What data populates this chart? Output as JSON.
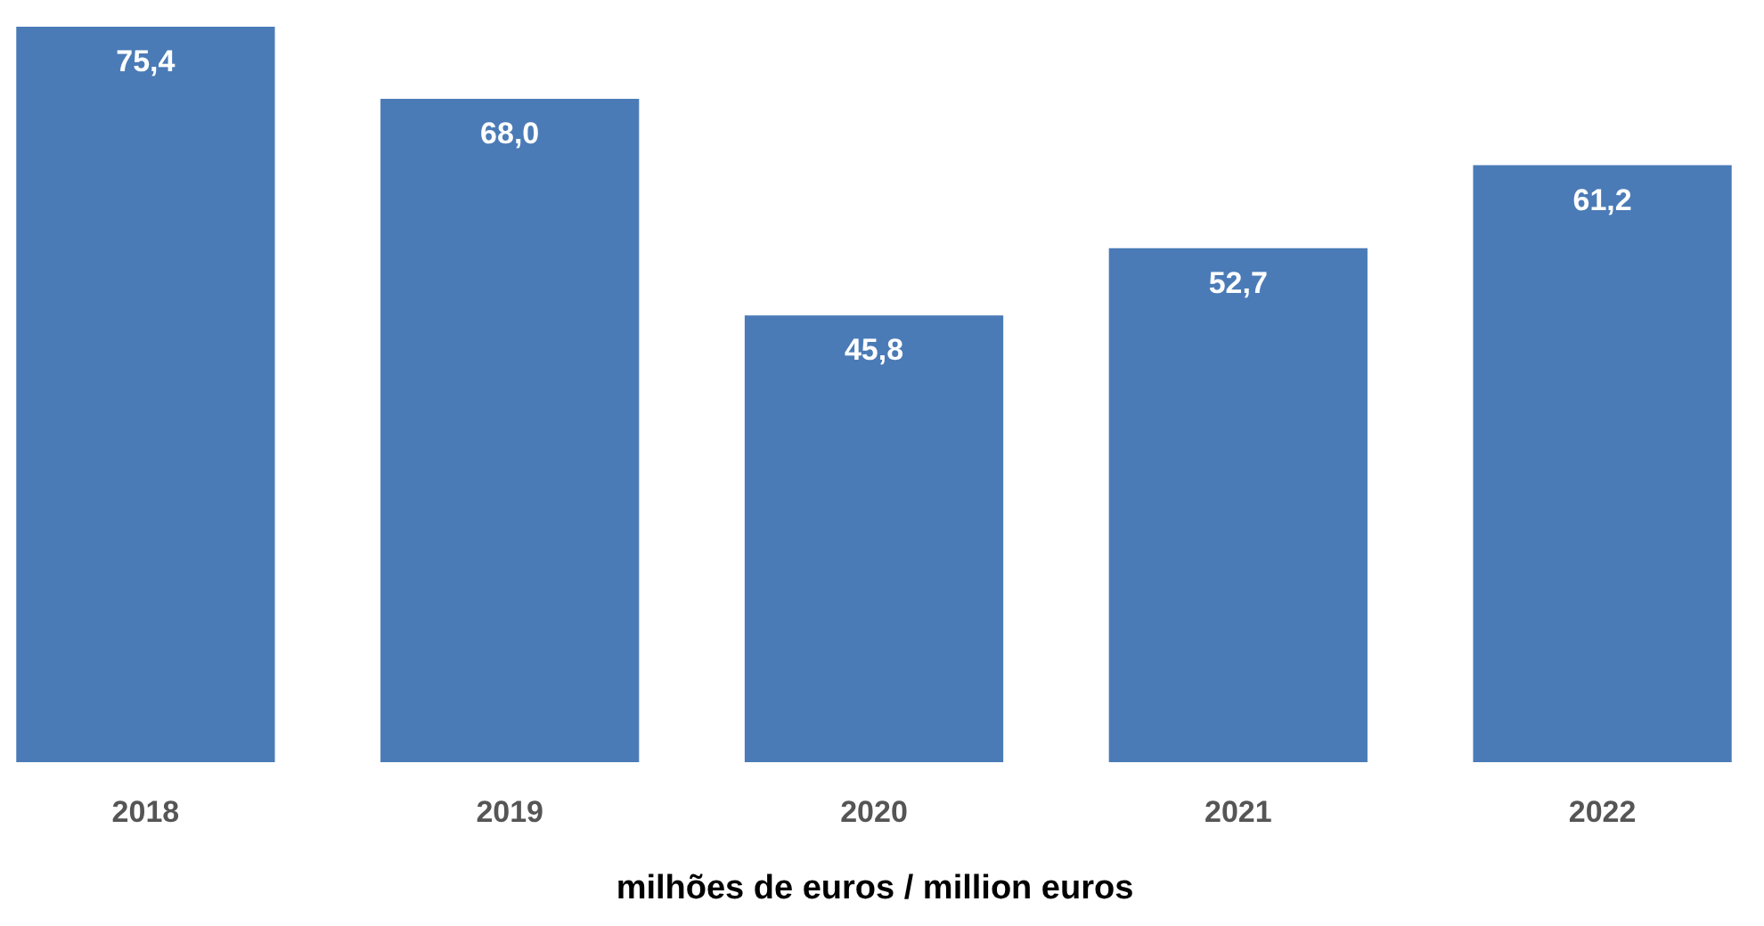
{
  "chart_data": {
    "type": "bar",
    "xlabel": "milhões de euros / million euros",
    "categories": [
      "2018",
      "2019",
      "2020",
      "2021",
      "2022"
    ],
    "values": [
      75.4,
      68.0,
      45.8,
      52.7,
      61.2
    ],
    "value_labels": [
      "75,4",
      "68,0",
      "45,8",
      "52,7",
      "61,2"
    ],
    "color": "#4a7bb7",
    "tick_labels": "x"
  }
}
